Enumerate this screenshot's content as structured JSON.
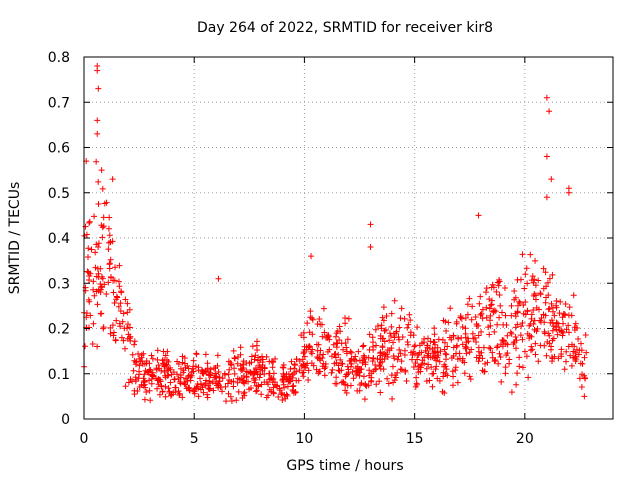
{
  "chart_data": {
    "type": "scatter",
    "title": "Day 264 of 2022, SRMTID for receiver kir8",
    "xlabel": "GPS time / hours",
    "ylabel": "SRMTID / TECUs",
    "xlim": [
      0,
      24
    ],
    "ylim": [
      0,
      0.8
    ],
    "xticks": [
      0,
      5,
      10,
      15,
      20
    ],
    "xtick_labels": [
      "0",
      "5",
      "10",
      "15",
      "20"
    ],
    "yticks": [
      0,
      0.1,
      0.2,
      0.3,
      0.4,
      0.5,
      0.6,
      0.7,
      0.8
    ],
    "ytick_labels": [
      "0",
      "0.1",
      "0.2",
      "0.3",
      "0.4",
      "0.5",
      "0.6",
      "0.7",
      "0.8"
    ],
    "grid": true,
    "marker": "+",
    "marker_color": "#ff0000",
    "series": [
      {
        "name": "SRMTID",
        "x_range": [
          0,
          22.8
        ],
        "profile_hours": [
          0,
          0.5,
          1,
          1.5,
          2,
          2.5,
          3,
          4,
          5,
          6,
          7,
          8,
          9,
          9.5,
          10,
          10.5,
          11,
          12,
          12.5,
          13,
          14,
          15,
          16,
          17,
          18,
          18.5,
          19,
          20,
          21,
          22,
          22.8
        ],
        "profile_median": [
          0.3,
          0.34,
          0.36,
          0.24,
          0.17,
          0.11,
          0.1,
          0.09,
          0.09,
          0.09,
          0.1,
          0.1,
          0.08,
          0.08,
          0.14,
          0.17,
          0.14,
          0.13,
          0.1,
          0.14,
          0.16,
          0.14,
          0.13,
          0.16,
          0.2,
          0.24,
          0.2,
          0.22,
          0.24,
          0.18,
          0.12
        ],
        "notable_points": [
          {
            "x": 0.6,
            "y": 0.78
          },
          {
            "x": 0.6,
            "y": 0.77
          },
          {
            "x": 0.65,
            "y": 0.73
          },
          {
            "x": 0.6,
            "y": 0.66
          },
          {
            "x": 0.6,
            "y": 0.63
          },
          {
            "x": 0.1,
            "y": 0.57
          },
          {
            "x": 0.8,
            "y": 0.55
          },
          {
            "x": 1.3,
            "y": 0.53
          },
          {
            "x": 6.1,
            "y": 0.31
          },
          {
            "x": 10.3,
            "y": 0.36
          },
          {
            "x": 13.0,
            "y": 0.43
          },
          {
            "x": 13.0,
            "y": 0.38
          },
          {
            "x": 17.9,
            "y": 0.45
          },
          {
            "x": 21.0,
            "y": 0.71
          },
          {
            "x": 21.1,
            "y": 0.68
          },
          {
            "x": 21.0,
            "y": 0.58
          },
          {
            "x": 21.2,
            "y": 0.53
          },
          {
            "x": 21.0,
            "y": 0.49
          },
          {
            "x": 22.0,
            "y": 0.51
          },
          {
            "x": 22.0,
            "y": 0.5
          },
          {
            "x": 22.7,
            "y": 0.05
          }
        ]
      }
    ]
  }
}
